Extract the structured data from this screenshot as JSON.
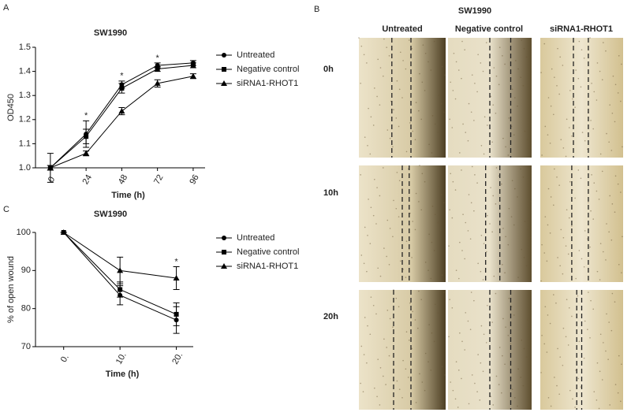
{
  "chart_data": [
    {
      "type": "line",
      "title": "SW1990",
      "xlabel": "Time (h)",
      "ylabel": "OD450",
      "x": [
        0,
        24,
        48,
        72,
        96
      ],
      "xlim": [
        -10,
        104
      ],
      "xticks": [
        0,
        24,
        48,
        72,
        96
      ],
      "ylim": [
        1.0,
        1.5
      ],
      "yticks": [
        {
          "value": 1.0,
          "label": "1.0"
        },
        1.1,
        1.2,
        1.3,
        1.4,
        1.5
      ],
      "series": [
        {
          "name": "Untreated",
          "color": "#000000",
          "marker": "circle",
          "values": [
            1.0,
            1.14,
            1.345,
            1.425,
            1.435
          ],
          "errors": [
            0.06,
            0.055,
            0.015,
            0.01,
            0.01
          ]
        },
        {
          "name": "Negative control",
          "color": "#000000",
          "marker": "square",
          "values": [
            1.0,
            1.13,
            1.33,
            1.41,
            1.425
          ],
          "errors": [
            0.01,
            0.03,
            0.02,
            0.01,
            0.01
          ]
        },
        {
          "name": "siRNA1-RHOT1",
          "color": "#000000",
          "marker": "triangle",
          "values": [
            1.0,
            1.06,
            1.235,
            1.35,
            1.38
          ],
          "errors": [
            0.01,
            0.01,
            0.015,
            0.015,
            0.01
          ]
        }
      ],
      "annotations": [
        {
          "text": "*",
          "x": 24
        },
        {
          "text": "*",
          "x": 48
        },
        {
          "text": "*",
          "x": 72
        }
      ]
    },
    {
      "type": "line",
      "title": "SW1990",
      "xlabel": "Time (h)",
      "ylabel": "% of open wound",
      "x": [
        0,
        10,
        20
      ],
      "xlim": [
        -5,
        23
      ],
      "xticks": [
        {
          "value": 0,
          "label": "0."
        },
        {
          "value": 10,
          "label": "10."
        },
        {
          "value": 20,
          "label": "20."
        }
      ],
      "ylim": [
        70,
        100
      ],
      "yticks": [
        70,
        80,
        90,
        100
      ],
      "series": [
        {
          "name": "Untreated",
          "color": "#000000",
          "marker": "circle",
          "values": [
            100,
            83.5,
            77
          ],
          "errors": [
            0,
            2.5,
            3.5
          ]
        },
        {
          "name": "Negative control",
          "color": "#000000",
          "marker": "square",
          "values": [
            100,
            85,
            78.5
          ],
          "errors": [
            0,
            2,
            3
          ]
        },
        {
          "name": "siRNA1-RHOT1",
          "color": "#000000",
          "marker": "triangle",
          "values": [
            100,
            90,
            88
          ],
          "errors": [
            0,
            3.5,
            3
          ]
        }
      ],
      "annotations": [
        {
          "text": "*",
          "x": 20
        }
      ]
    }
  ],
  "panel_labels": [
    "A",
    "B",
    "C"
  ],
  "images": {
    "title": "SW1990",
    "columns": [
      "Untreated",
      "Negative control",
      "siRNA1-RHOT1"
    ],
    "rows": [
      "0h",
      "10h",
      "20h"
    ]
  }
}
